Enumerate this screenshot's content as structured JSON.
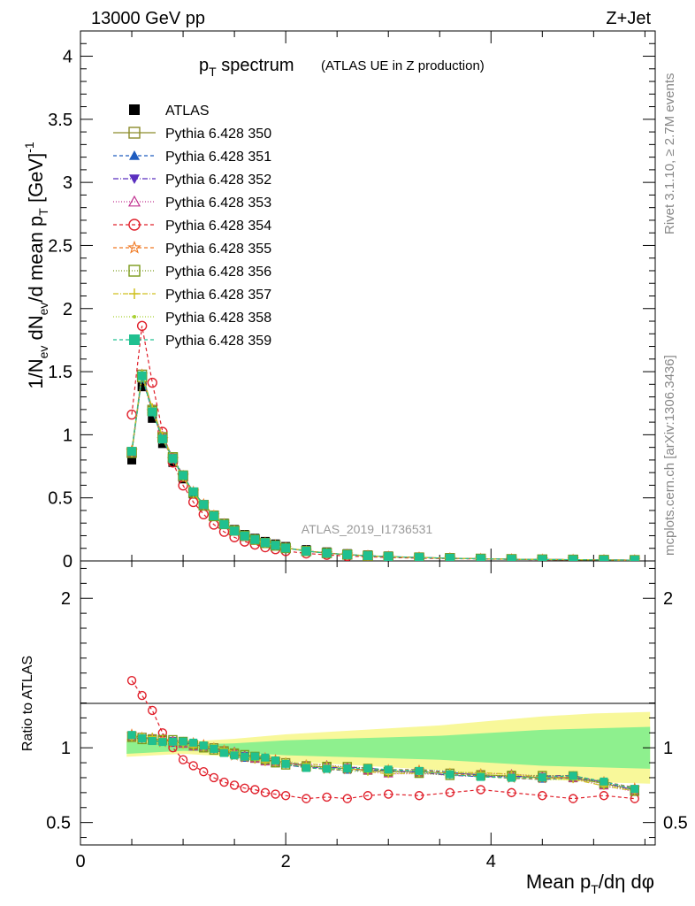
{
  "header": {
    "left": "13000 GeV pp",
    "right": "Z+Jet"
  },
  "side": {
    "rivet": "Rivet 3.1.10, ≥ 2.7M events",
    "mcplots": "mcplots.cern.ch [arXiv:1306.3436]"
  },
  "analysis_id": "ATLAS_2019_I1736531",
  "chart_data": [
    {
      "panel": "main",
      "type": "scatter",
      "title": "p_T spectrum",
      "subtitle": "(ATLAS UE in Z production)",
      "xlabel": "",
      "ylabel": "1/N_ev dN_ev/d mean p_T [GeV]^-1",
      "xlim": [
        0,
        5.6
      ],
      "ylim": [
        0,
        4.2
      ],
      "xticks": [
        0,
        2,
        4
      ],
      "yticks": [
        0,
        0.5,
        1,
        1.5,
        2,
        2.5,
        3,
        3.5,
        4
      ],
      "ytick_labels": [
        "0",
        "0.5",
        "1",
        "1.5",
        "2",
        "2.5",
        "3",
        "3.5",
        "4"
      ],
      "legend_position": "top-left",
      "x": [
        0.5,
        0.6,
        0.7,
        0.8,
        0.9,
        1.0,
        1.1,
        1.2,
        1.3,
        1.4,
        1.5,
        1.6,
        1.7,
        1.8,
        1.9,
        2.0,
        2.2,
        2.4,
        2.6,
        2.8,
        3.0,
        3.3,
        3.6,
        3.9,
        4.2,
        4.5,
        4.8,
        5.1,
        5.4
      ],
      "data": [
        0.8,
        1.38,
        1.13,
        0.93,
        0.78,
        0.65,
        0.53,
        0.44,
        0.36,
        0.3,
        0.25,
        0.21,
        0.18,
        0.155,
        0.135,
        0.115,
        0.09,
        0.072,
        0.058,
        0.048,
        0.04,
        0.032,
        0.026,
        0.021,
        0.017,
        0.014,
        0.012,
        0.01,
        0.009
      ],
      "series": [
        {
          "name": "ATLAS",
          "color": "#000000",
          "marker": "square-filled",
          "dash": "none"
        },
        {
          "name": "Pythia 6.428 350",
          "color": "#8c8c2a",
          "marker": "square-open",
          "dash": "solid"
        },
        {
          "name": "Pythia 6.428 351",
          "color": "#1f5cbf",
          "marker": "triangle-up-filled",
          "dash": "4 3"
        },
        {
          "name": "Pythia 6.428 352",
          "color": "#5a2fbf",
          "marker": "triangle-down-filled",
          "dash": "6 2 1 2"
        },
        {
          "name": "Pythia 6.428 353",
          "color": "#c0308f",
          "marker": "triangle-up-open",
          "dash": "1 2"
        },
        {
          "name": "Pythia 6.428 354",
          "color": "#e0202b",
          "marker": "circle-open",
          "dash": "4 3"
        },
        {
          "name": "Pythia 6.428 355",
          "color": "#f07820",
          "marker": "star-open",
          "dash": "4 3"
        },
        {
          "name": "Pythia 6.428 356",
          "color": "#7a9a1a",
          "marker": "square-open",
          "dash": "1 2"
        },
        {
          "name": "Pythia 6.428 357",
          "color": "#d0c020",
          "marker": "plus",
          "dash": "6 2 1 2"
        },
        {
          "name": "Pythia 6.428 358",
          "color": "#a8d030",
          "marker": "dot",
          "dash": "1 2"
        },
        {
          "name": "Pythia 6.428 359",
          "color": "#20c090",
          "marker": "square-filled",
          "dash": "4 3"
        }
      ],
      "mc_scale": {
        "Pythia 6.428 350": [
          1.08,
          1.07,
          1.06,
          1.05,
          1.04,
          1.03,
          1.02,
          1.01,
          1.0,
          0.98,
          0.96,
          0.94,
          0.93,
          0.92,
          0.91,
          0.9,
          0.88,
          0.87,
          0.86,
          0.85,
          0.84,
          0.84,
          0.83,
          0.82,
          0.81,
          0.8,
          0.8,
          0.76,
          0.72
        ],
        "Pythia 6.428 354": [
          1.45,
          1.35,
          1.25,
          1.1,
          1.0,
          0.92,
          0.88,
          0.84,
          0.8,
          0.77,
          0.75,
          0.73,
          0.72,
          0.7,
          0.69,
          0.68,
          0.66,
          0.67,
          0.66,
          0.68,
          0.69,
          0.68,
          0.7,
          0.72,
          0.7,
          0.68,
          0.66,
          0.68,
          0.66
        ]
      }
    },
    {
      "panel": "ratio",
      "type": "line",
      "ylabel": "Ratio to ATLAS",
      "xlabel": "Mean p_T/dη dφ",
      "xlim": [
        0,
        5.6
      ],
      "ylim": [
        0.35,
        2.25
      ],
      "yticks": [
        0.5,
        1,
        2
      ],
      "ytick_labels": [
        "0.5",
        "1",
        "2"
      ],
      "xticks": [
        0,
        2,
        4
      ],
      "xtick_labels": [
        "0",
        "2",
        "4"
      ],
      "band_x": [
        0.45,
        1.0,
        1.5,
        2.0,
        2.5,
        3.0,
        3.5,
        4.0,
        4.5,
        5.0,
        5.55
      ],
      "band_inner": [
        0.04,
        0.02,
        0.03,
        0.05,
        0.06,
        0.07,
        0.08,
        0.1,
        0.12,
        0.13,
        0.14
      ],
      "band_outer": [
        0.06,
        0.04,
        0.06,
        0.09,
        0.11,
        0.13,
        0.15,
        0.18,
        0.21,
        0.23,
        0.24
      ]
    }
  ]
}
